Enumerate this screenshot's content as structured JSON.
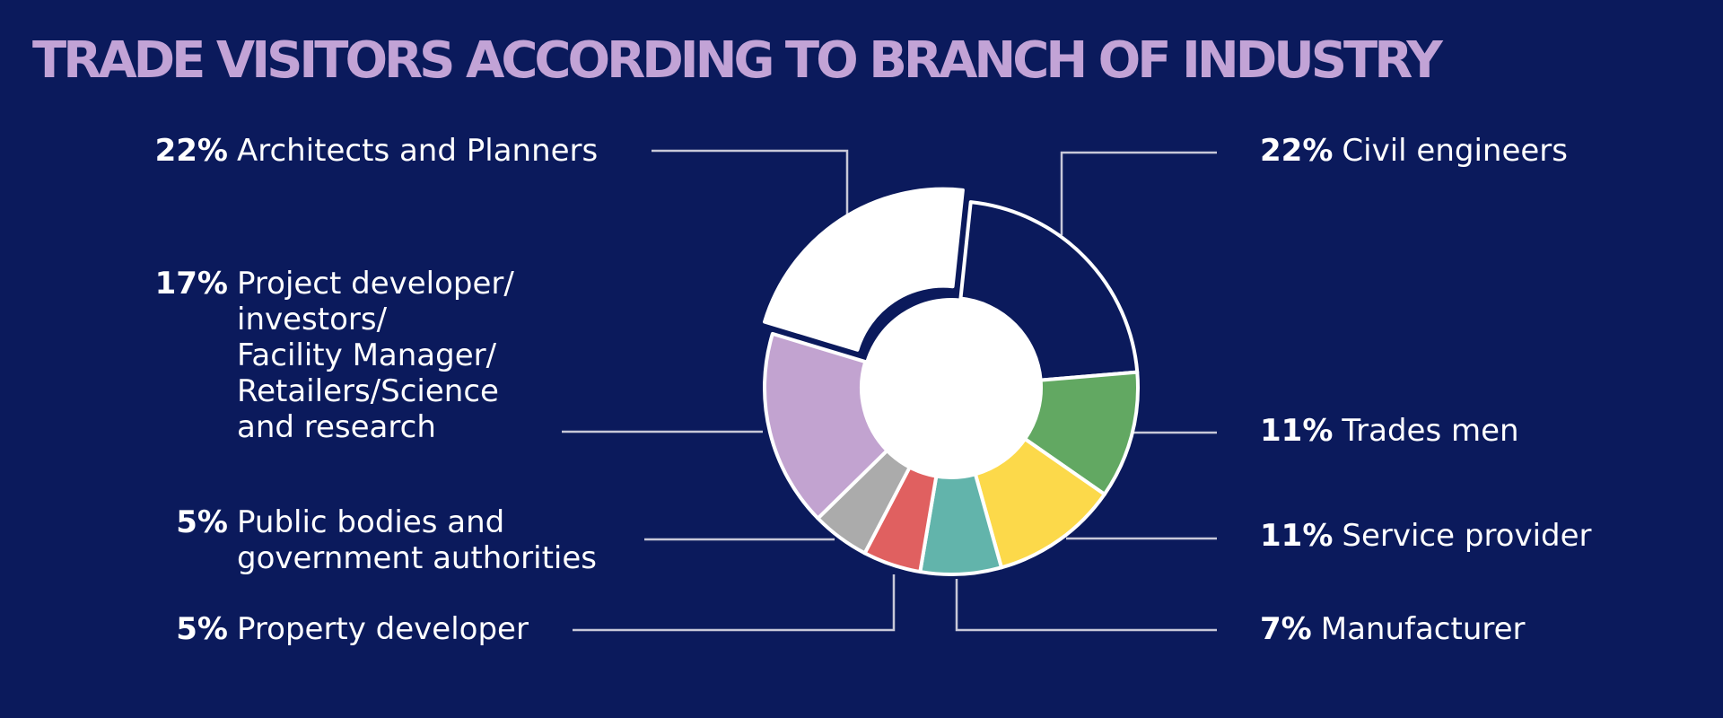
{
  "title": "TRADE VISITORS ACCORDING TO BRANCH OF INDUSTRY",
  "chart_data": {
    "type": "pie",
    "style": "donut",
    "legend": "callout labels left and right of chart",
    "slices": [
      {
        "id": "civil",
        "label": "Civil engineers",
        "value": 22,
        "value_label": "22%",
        "color": "#0b1a5c"
      },
      {
        "id": "trades",
        "label": "Trades men",
        "value": 11,
        "value_label": "11%",
        "color": "#62a862"
      },
      {
        "id": "service",
        "label": "Service provider",
        "value": 11,
        "value_label": "11%",
        "color": "#fcd94a"
      },
      {
        "id": "manufacturer",
        "label": "Manufacturer",
        "value": 7,
        "value_label": "7%",
        "color": "#62b4ab"
      },
      {
        "id": "property",
        "label": "Property developer",
        "value": 5,
        "value_label": "5%",
        "color": "#e06060"
      },
      {
        "id": "public",
        "label": "Public bodies and\ngovernment authorities",
        "value": 5,
        "value_label": "5%",
        "color": "#ababab"
      },
      {
        "id": "project",
        "label": "Project developer/\ninvestors/\nFacility Manager/\nRetailers/Science\nand research",
        "value": 17,
        "value_label": "17%",
        "color": "#c2a3d0"
      },
      {
        "id": "architects",
        "label": "Architects and Planners",
        "value": 22,
        "value_label": "22%",
        "color": "#ffffff"
      }
    ]
  },
  "colors": {
    "background": "#0b1a5c",
    "title": "#c2a3d6",
    "text": "#ffffff",
    "leader_lines": "#c8c8d8"
  }
}
